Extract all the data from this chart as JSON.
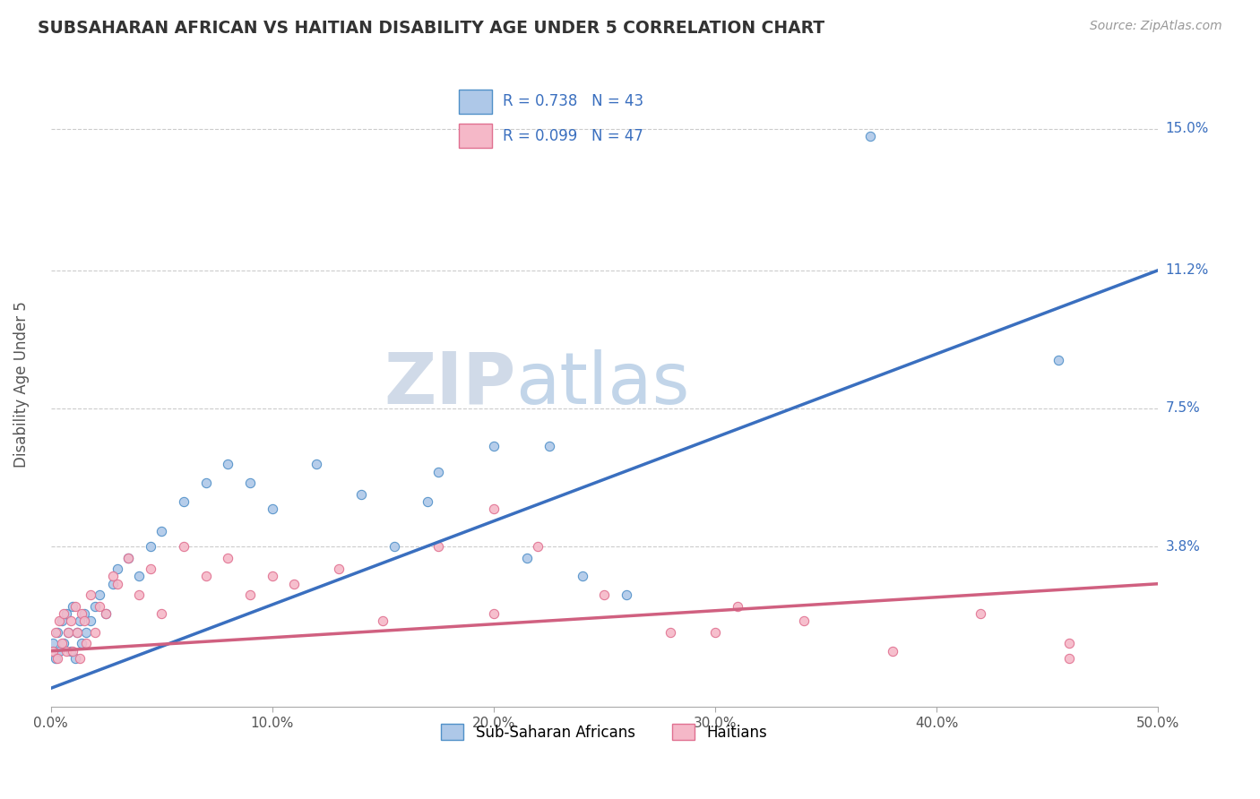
{
  "title": "SUBSAHARAN AFRICAN VS HAITIAN DISABILITY AGE UNDER 5 CORRELATION CHART",
  "source": "Source: ZipAtlas.com",
  "ylabel": "Disability Age Under 5",
  "xlim": [
    0.0,
    0.5
  ],
  "ylim": [
    -0.005,
    0.168
  ],
  "xtick_labels": [
    "0.0%",
    "10.0%",
    "20.0%",
    "30.0%",
    "40.0%",
    "50.0%"
  ],
  "xtick_vals": [
    0.0,
    0.1,
    0.2,
    0.3,
    0.4,
    0.5
  ],
  "ytick_labels_right": [
    "3.8%",
    "7.5%",
    "11.2%",
    "15.0%"
  ],
  "ytick_vals_right": [
    0.038,
    0.075,
    0.112,
    0.15
  ],
  "blue_fill_color": "#aec8e8",
  "blue_edge_color": "#5090c8",
  "pink_fill_color": "#f5b8c8",
  "pink_edge_color": "#e07090",
  "blue_line_color": "#3a6fbf",
  "pink_line_color": "#d06080",
  "legend_blue_R": "R = 0.738",
  "legend_blue_N": "N = 43",
  "legend_pink_R": "R = 0.099",
  "legend_pink_N": "N = 47",
  "legend_label_blue": "Sub-Saharan Africans",
  "legend_label_pink": "Haitians",
  "title_color": "#333333",
  "axis_label_color": "#555555",
  "tick_color": "#555555",
  "grid_color": "#cccccc",
  "watermark_zip": "ZIP",
  "watermark_atlas": "atlas",
  "blue_line_x": [
    0.0,
    0.5
  ],
  "blue_line_y": [
    0.0,
    0.112
  ],
  "pink_line_x": [
    0.0,
    0.5
  ],
  "pink_line_y": [
    0.01,
    0.028
  ],
  "blue_scatter_x": [
    0.001,
    0.002,
    0.003,
    0.004,
    0.005,
    0.006,
    0.007,
    0.008,
    0.009,
    0.01,
    0.011,
    0.012,
    0.013,
    0.014,
    0.015,
    0.016,
    0.018,
    0.02,
    0.022,
    0.025,
    0.028,
    0.03,
    0.035,
    0.04,
    0.045,
    0.05,
    0.06,
    0.07,
    0.08,
    0.09,
    0.1,
    0.12,
    0.14,
    0.155,
    0.175,
    0.2,
    0.215,
    0.225,
    0.24,
    0.26,
    0.17,
    0.37,
    0.455
  ],
  "blue_scatter_y": [
    0.012,
    0.008,
    0.015,
    0.01,
    0.018,
    0.012,
    0.02,
    0.015,
    0.01,
    0.022,
    0.008,
    0.015,
    0.018,
    0.012,
    0.02,
    0.015,
    0.018,
    0.022,
    0.025,
    0.02,
    0.028,
    0.032,
    0.035,
    0.03,
    0.038,
    0.042,
    0.05,
    0.055,
    0.06,
    0.055,
    0.048,
    0.06,
    0.052,
    0.038,
    0.058,
    0.065,
    0.035,
    0.065,
    0.03,
    0.025,
    0.05,
    0.148,
    0.088
  ],
  "pink_scatter_x": [
    0.001,
    0.002,
    0.003,
    0.004,
    0.005,
    0.006,
    0.007,
    0.008,
    0.009,
    0.01,
    0.011,
    0.012,
    0.013,
    0.014,
    0.015,
    0.016,
    0.018,
    0.02,
    0.022,
    0.025,
    0.028,
    0.03,
    0.035,
    0.04,
    0.045,
    0.05,
    0.06,
    0.07,
    0.08,
    0.09,
    0.1,
    0.11,
    0.13,
    0.15,
    0.175,
    0.2,
    0.22,
    0.25,
    0.28,
    0.31,
    0.34,
    0.38,
    0.42,
    0.46,
    0.2,
    0.3,
    0.46
  ],
  "pink_scatter_y": [
    0.01,
    0.015,
    0.008,
    0.018,
    0.012,
    0.02,
    0.01,
    0.015,
    0.018,
    0.01,
    0.022,
    0.015,
    0.008,
    0.02,
    0.018,
    0.012,
    0.025,
    0.015,
    0.022,
    0.02,
    0.03,
    0.028,
    0.035,
    0.025,
    0.032,
    0.02,
    0.038,
    0.03,
    0.035,
    0.025,
    0.03,
    0.028,
    0.032,
    0.018,
    0.038,
    0.02,
    0.038,
    0.025,
    0.015,
    0.022,
    0.018,
    0.01,
    0.02,
    0.012,
    0.048,
    0.015,
    0.008
  ]
}
